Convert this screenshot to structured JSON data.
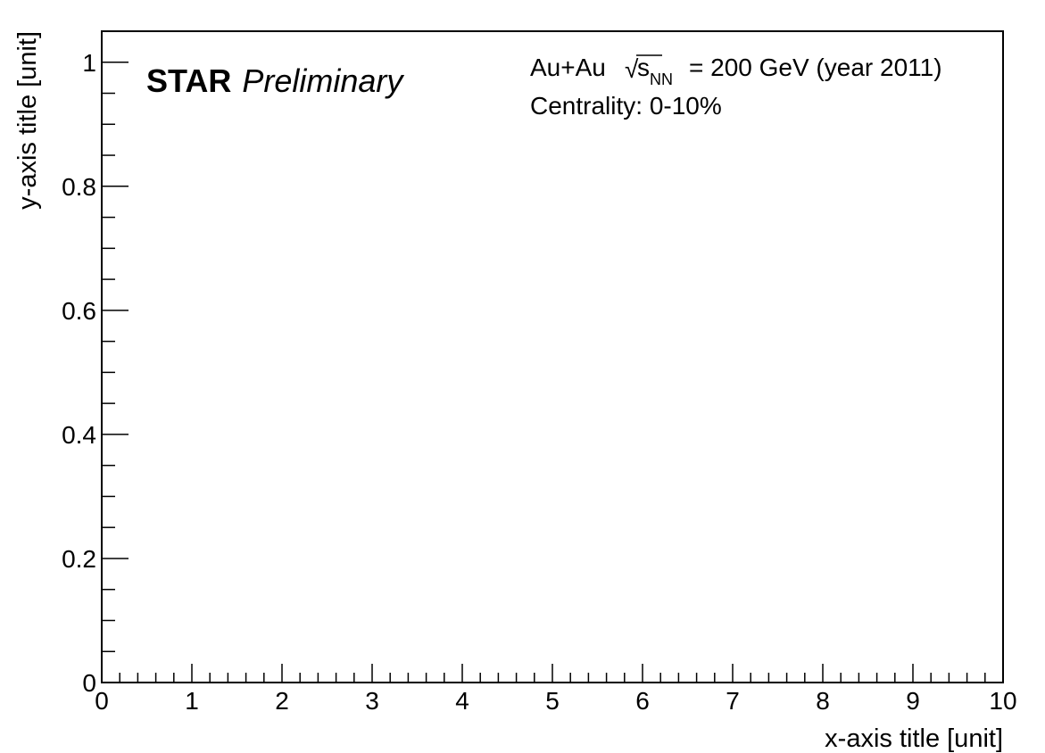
{
  "chart_data": {
    "type": "scatter",
    "series": [],
    "xlabel": "x-axis title [unit]",
    "ylabel": "y-axis title [unit]",
    "xlim": [
      0,
      10
    ],
    "ylim": [
      0,
      1.05
    ],
    "x_ticks": [
      0,
      1,
      2,
      3,
      4,
      5,
      6,
      7,
      8,
      9,
      10
    ],
    "x_tick_labels": [
      "0",
      "1",
      "2",
      "3",
      "4",
      "5",
      "6",
      "7",
      "8",
      "9",
      "10"
    ],
    "y_ticks": [
      0,
      0.2,
      0.4,
      0.6,
      0.8,
      1
    ],
    "y_tick_labels": [
      "0",
      "0.2",
      "0.4",
      "0.6",
      "0.8",
      "1"
    ],
    "x_minor_per_major": 5,
    "y_minor_per_major": 4,
    "grid": false,
    "logo": {
      "bold": "STAR",
      "italic": "Preliminary"
    },
    "annotations": {
      "system_prefix": "Au+Au",
      "sqrt_symbol": "√",
      "sqrt_var": "s",
      "sqrt_sub": "NN",
      "energy_suffix": "= 200 GeV (year 2011)",
      "centrality": "Centrality: 0-10%"
    },
    "colors": {
      "axis": "#000000",
      "background": "#ffffff"
    }
  }
}
